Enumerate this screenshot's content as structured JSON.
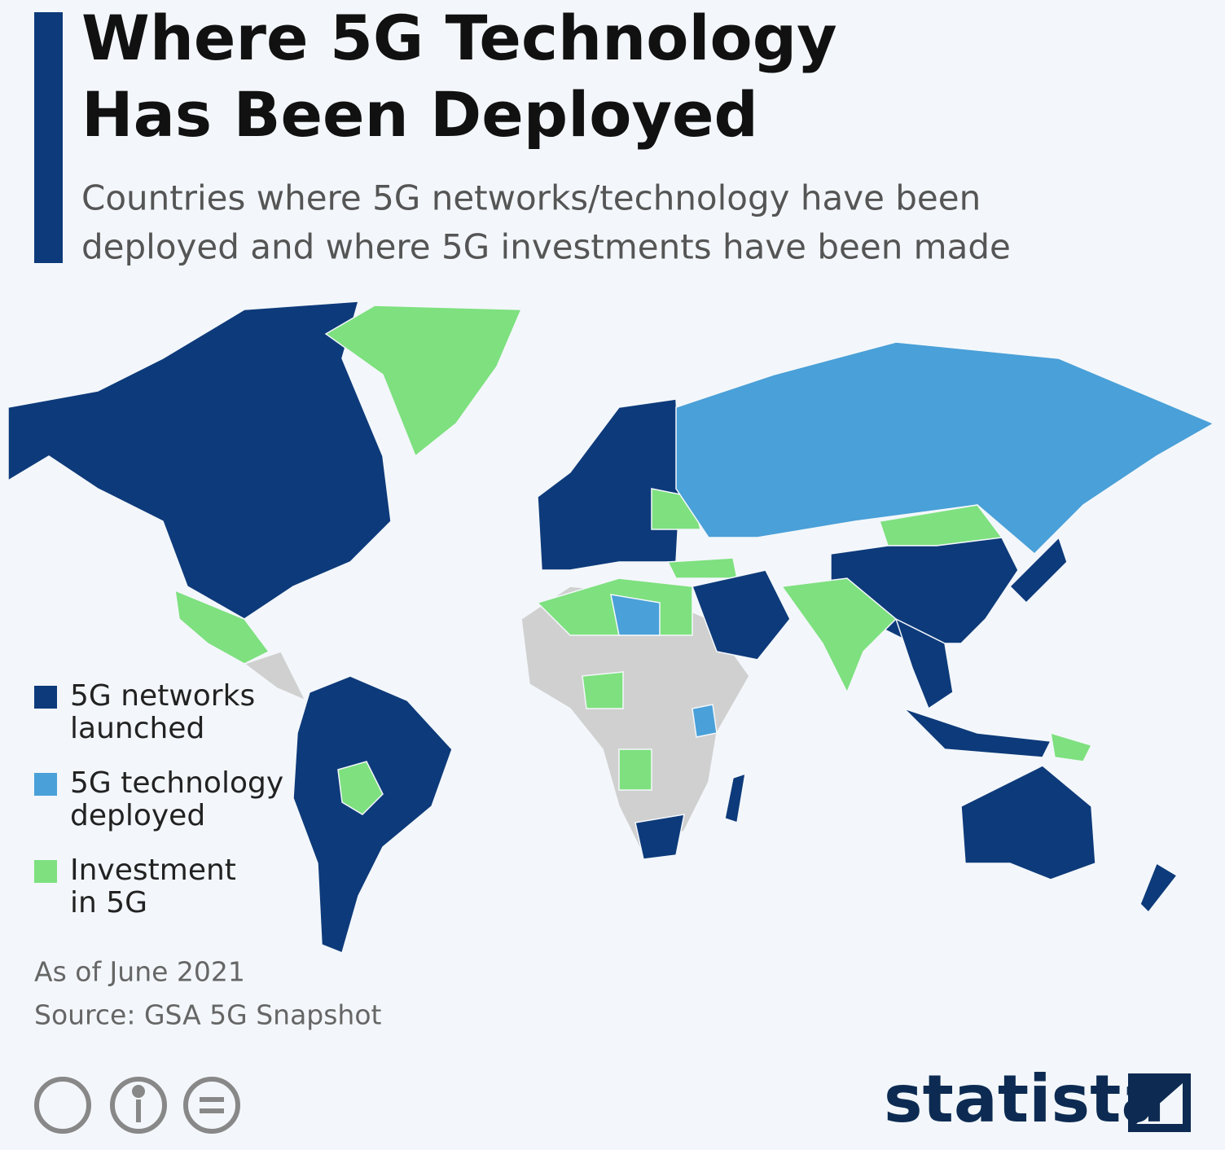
{
  "header": {
    "title_lines": [
      "Where 5G Technology",
      "Has Been Deployed"
    ],
    "subtitle_lines": [
      "Countries where 5G networks/technology have been",
      "deployed and where 5G investments have been made"
    ]
  },
  "legend": [
    {
      "label_lines": [
        "5G networks",
        "launched"
      ],
      "color": "#0d3a7a"
    },
    {
      "label_lines": [
        "5G technology",
        "deployed"
      ],
      "color": "#4aa0d8"
    },
    {
      "label_lines": [
        "Investment",
        "in 5G"
      ],
      "color": "#7ee07f"
    }
  ],
  "notes": [
    "As of June 2021",
    "Source: GSA 5G Snapshot"
  ],
  "brand": "statista"
}
